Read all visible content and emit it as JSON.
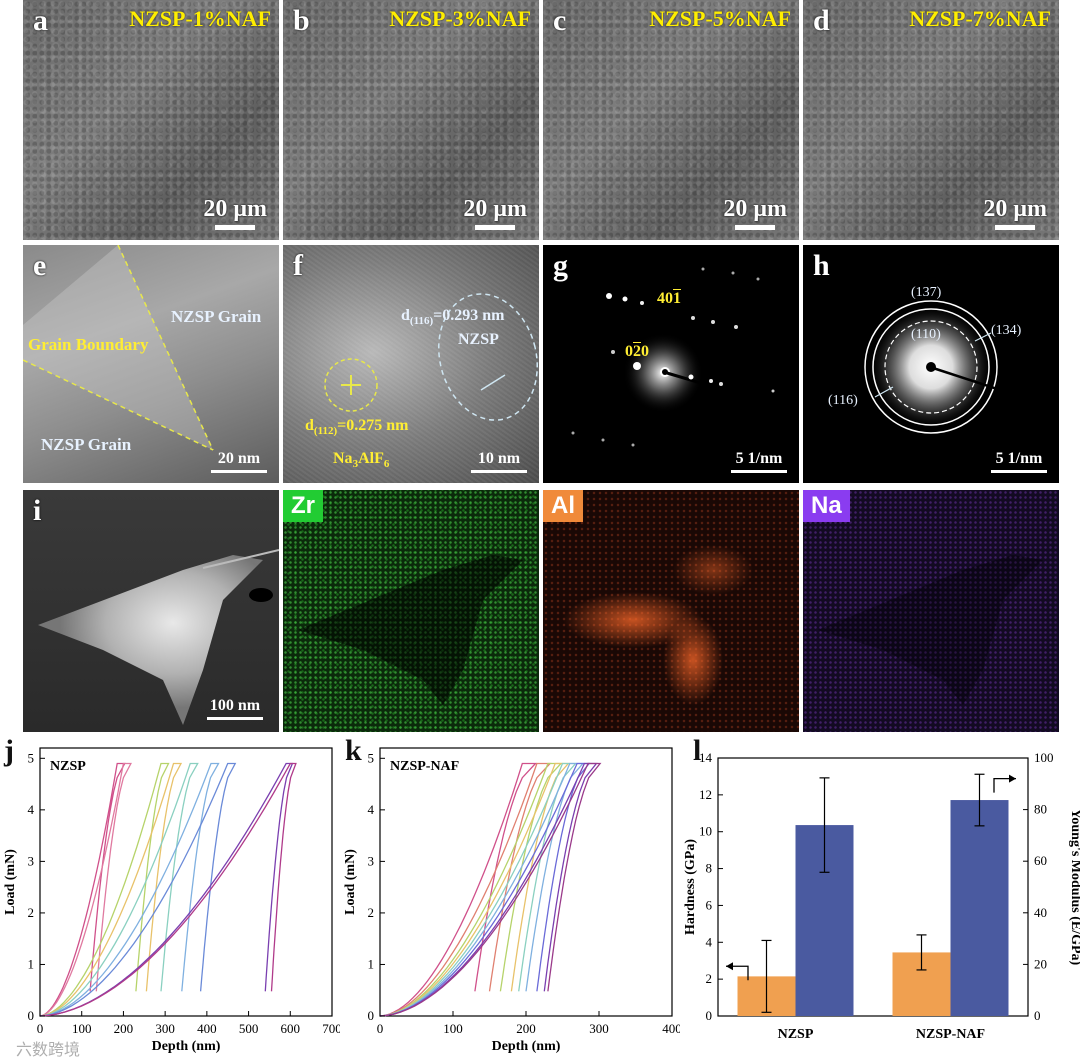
{
  "row1": {
    "panels": [
      {
        "letter": "a",
        "title": "NZSP-1%NAF",
        "scale": "20 μm"
      },
      {
        "letter": "b",
        "title": "NZSP-3%NAF",
        "scale": "20 μm"
      },
      {
        "letter": "c",
        "title": "NZSP-5%NAF",
        "scale": "20 μm"
      },
      {
        "letter": "d",
        "title": "NZSP-7%NAF",
        "scale": "20 μm"
      }
    ]
  },
  "row2": {
    "e": {
      "letter": "e",
      "grain_top": "NZSP Grain",
      "boundary": "Grain Boundary",
      "grain_bottom": "NZSP Grain",
      "scale": "20 nm"
    },
    "f": {
      "letter": "f",
      "d116_prefix": "d",
      "d116_sub": "(116)",
      "d116_value": "=0.293 nm",
      "nzsp": "NZSP",
      "d112_prefix": "d",
      "d112_sub": "(112)",
      "d112_value": "=0.275 nm",
      "naf_prefix": "Na",
      "naf_sub1": "3",
      "naf_mid": "AlF",
      "naf_sub2": "6",
      "scale": "10 nm"
    },
    "g": {
      "letter": "g",
      "spot1": "40",
      "spot1_bar": "1",
      "spot2_a": "0",
      "spot2_bar": "2",
      "spot2_b": "0",
      "scale": "5 1/nm"
    },
    "h": {
      "letter": "h",
      "ring137": "(137)",
      "ring110": "(110)",
      "ring134": "(134)",
      "ring116": "(116)",
      "scale": "5 1/nm"
    }
  },
  "row3": {
    "i": {
      "letter": "i",
      "scale": "100 nm"
    },
    "maps": [
      {
        "element": "Zr",
        "color": "#22cc33"
      },
      {
        "element": "Al",
        "color": "#f08a3a"
      },
      {
        "element": "Na",
        "color": "#8a3cf0"
      }
    ]
  },
  "chart_data": [
    {
      "panel": "j",
      "type": "line",
      "title": "NZSP",
      "xlabel": "Depth (nm)",
      "ylabel": "Load (mN)",
      "xlim": [
        0,
        700
      ],
      "ylim": [
        0,
        5.2
      ],
      "xticks": [
        "0",
        "100",
        "200",
        "300",
        "400",
        "500",
        "600",
        "700"
      ],
      "yticks": [
        "0",
        "1",
        "2",
        "3",
        "4",
        "5"
      ],
      "series": [
        {
          "name": "indent-1",
          "color": "#d0508a",
          "max_depth": 185,
          "final_depth": 120
        },
        {
          "name": "indent-2",
          "color": "#e07aa0",
          "max_depth": 200,
          "final_depth": 135
        },
        {
          "name": "indent-3",
          "color": "#b6d36a",
          "max_depth": 290,
          "final_depth": 230
        },
        {
          "name": "indent-4",
          "color": "#e8c26a",
          "max_depth": 320,
          "final_depth": 255
        },
        {
          "name": "indent-5",
          "color": "#8ad0c0",
          "max_depth": 360,
          "final_depth": 290
        },
        {
          "name": "indent-6",
          "color": "#7fb0e0",
          "max_depth": 410,
          "final_depth": 340
        },
        {
          "name": "indent-7",
          "color": "#6a8ad8",
          "max_depth": 450,
          "final_depth": 385
        },
        {
          "name": "indent-8",
          "color": "#7a3fb0",
          "max_depth": 590,
          "final_depth": 540
        },
        {
          "name": "indent-9",
          "color": "#b03a8a",
          "max_depth": 600,
          "final_depth": 555
        }
      ]
    },
    {
      "panel": "k",
      "type": "line",
      "title": "NZSP-NAF",
      "xlabel": "Depth (nm)",
      "ylabel": "Load (mN)",
      "xlim": [
        0,
        400
      ],
      "ylim": [
        0,
        5.2
      ],
      "xticks": [
        "0",
        "100",
        "200",
        "300",
        "400"
      ],
      "yticks": [
        "0",
        "1",
        "2",
        "3",
        "4",
        "5"
      ],
      "series": [
        {
          "name": "indent-1",
          "color": "#d0508a",
          "max_depth": 195,
          "final_depth": 130
        },
        {
          "name": "indent-2",
          "color": "#e08070",
          "max_depth": 215,
          "final_depth": 150
        },
        {
          "name": "indent-3",
          "color": "#b6d36a",
          "max_depth": 230,
          "final_depth": 165
        },
        {
          "name": "indent-4",
          "color": "#e8c26a",
          "max_depth": 240,
          "final_depth": 180
        },
        {
          "name": "indent-5",
          "color": "#8ad0c0",
          "max_depth": 250,
          "final_depth": 190
        },
        {
          "name": "indent-6",
          "color": "#7fb0e0",
          "max_depth": 260,
          "final_depth": 200
        },
        {
          "name": "indent-7",
          "color": "#6a6ad8",
          "max_depth": 270,
          "final_depth": 215
        },
        {
          "name": "indent-8",
          "color": "#7a3fb0",
          "max_depth": 280,
          "final_depth": 225
        },
        {
          "name": "indent-9",
          "color": "#9a3a8a",
          "max_depth": 285,
          "final_depth": 230
        }
      ]
    },
    {
      "panel": "l",
      "type": "bar",
      "categories": [
        "NZSP",
        "NZSP-NAF"
      ],
      "series": [
        {
          "name": "Hardness",
          "axis": "left",
          "color": "#f0a050",
          "values": [
            2.15,
            3.45
          ],
          "errors": [
            1.95,
            0.95
          ]
        },
        {
          "name": "Young's Modulus",
          "axis": "right",
          "color": "#4a5aa0",
          "values": [
            74.0,
            83.7
          ],
          "errors": [
            18.3,
            10.0
          ]
        }
      ],
      "ylabel_left": "Hardness (GPa)",
      "ylabel_right": "Young's Modulus (E/GPa)",
      "ylim_left": [
        0,
        14
      ],
      "ylim_right": [
        0,
        100
      ],
      "yticks_left": [
        "0",
        "2",
        "4",
        "6",
        "8",
        "10",
        "12",
        "14"
      ],
      "yticks_right": [
        "0",
        "20",
        "40",
        "60",
        "80",
        "100"
      ]
    }
  ],
  "watermark": "六数跨境"
}
